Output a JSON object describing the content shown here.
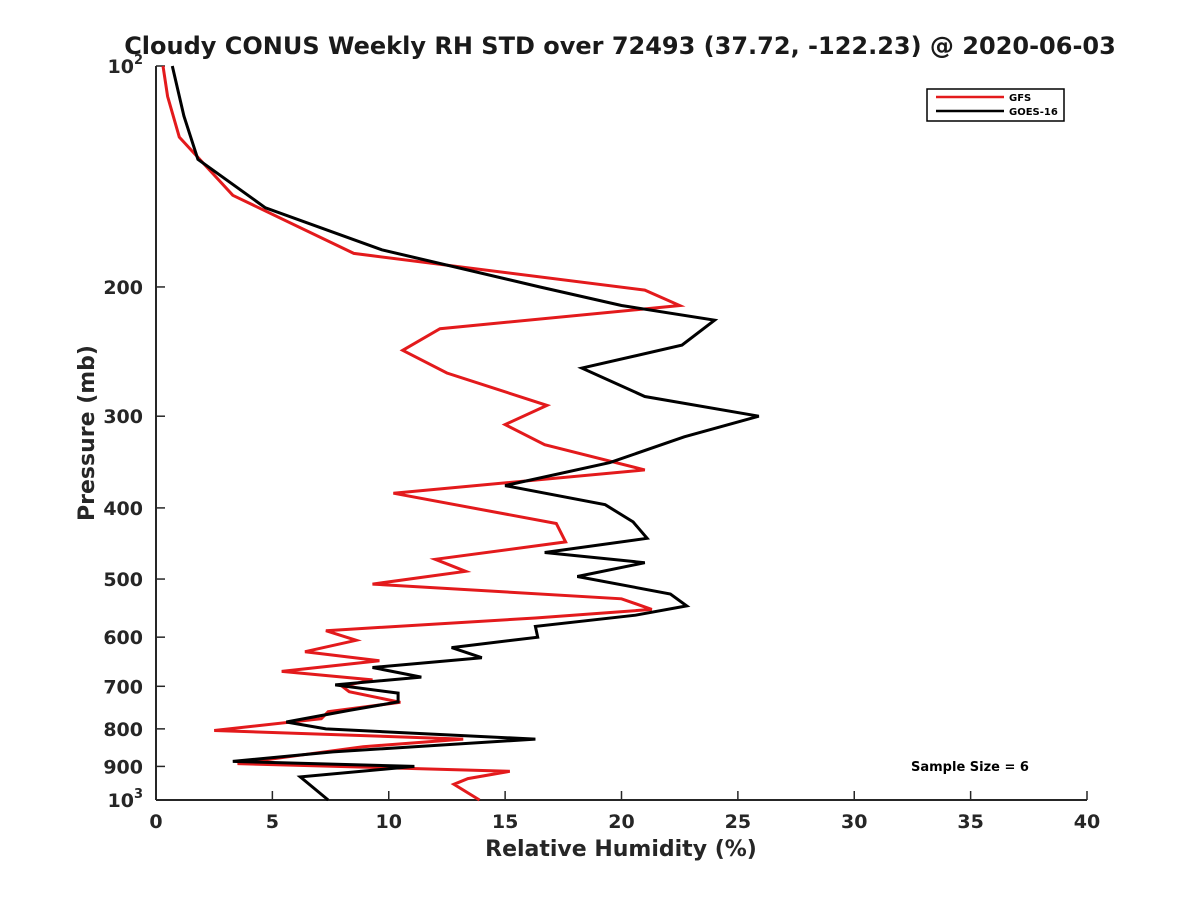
{
  "chart_data": {
    "type": "line",
    "title": "Cloudy CONUS Weekly RH STD over 72493 (37.72, -122.23) @ 2020-06-03",
    "xlabel": "Relative Humidity (%)",
    "ylabel": "Pressure (mb)",
    "xlim": [
      0,
      40
    ],
    "ylim": [
      1000,
      100
    ],
    "y_scale": "log",
    "y_reversed": true,
    "x_ticks": [
      "0",
      "5",
      "10",
      "15",
      "20",
      "25",
      "30",
      "35",
      "40"
    ],
    "y_ticks": [
      {
        "value": 100,
        "base": "10",
        "exp": "2"
      },
      {
        "value": 200,
        "label": "200"
      },
      {
        "value": 300,
        "label": "300"
      },
      {
        "value": 400,
        "label": "400"
      },
      {
        "value": 500,
        "label": "500"
      },
      {
        "value": 600,
        "label": "600"
      },
      {
        "value": 700,
        "label": "700"
      },
      {
        "value": 800,
        "label": "800"
      },
      {
        "value": 900,
        "label": "900"
      },
      {
        "value": 1000,
        "base": "10",
        "exp": "3"
      }
    ],
    "legend_position": "top-right",
    "grid": false,
    "annotation": "Sample Size = 6",
    "series": [
      {
        "name": "GFS",
        "color": "#e31a1c",
        "points": [
          [
            0.3,
            100
          ],
          [
            0.5,
            110
          ],
          [
            1.0,
            125
          ],
          [
            3.3,
            150
          ],
          [
            8.5,
            180
          ],
          [
            21.0,
            202
          ],
          [
            22.5,
            212
          ],
          [
            12.2,
            228
          ],
          [
            10.6,
            244
          ],
          [
            12.5,
            262
          ],
          [
            16.8,
            290
          ],
          [
            15.0,
            308
          ],
          [
            16.7,
            328
          ],
          [
            21.0,
            355
          ],
          [
            10.2,
            382
          ],
          [
            17.2,
            420
          ],
          [
            17.6,
            445
          ],
          [
            12.0,
            470
          ],
          [
            13.3,
            488
          ],
          [
            9.3,
            508
          ],
          [
            20.0,
            532
          ],
          [
            21.3,
            550
          ],
          [
            16.3,
            565
          ],
          [
            7.3,
            588
          ],
          [
            8.6,
            606
          ],
          [
            6.4,
            628
          ],
          [
            9.6,
            646
          ],
          [
            5.4,
            668
          ],
          [
            9.3,
            686
          ],
          [
            8.0,
            700
          ],
          [
            8.3,
            712
          ],
          [
            10.5,
            736
          ],
          [
            7.4,
            758
          ],
          [
            7.1,
            775
          ],
          [
            2.5,
            804
          ],
          [
            13.2,
            826
          ],
          [
            8.9,
            846
          ],
          [
            3.5,
            892
          ],
          [
            15.2,
            914
          ],
          [
            13.4,
            935
          ],
          [
            12.8,
            952
          ],
          [
            13.9,
            1000
          ]
        ]
      },
      {
        "name": "GOES-16",
        "color": "#000000",
        "points": [
          [
            0.7,
            100
          ],
          [
            1.2,
            117
          ],
          [
            1.8,
            134
          ],
          [
            4.7,
            156
          ],
          [
            9.7,
            178
          ],
          [
            16.5,
            200
          ],
          [
            20.0,
            212
          ],
          [
            24.0,
            222
          ],
          [
            22.6,
            240
          ],
          [
            18.3,
            258
          ],
          [
            21.0,
            282
          ],
          [
            25.9,
            300
          ],
          [
            22.7,
            320
          ],
          [
            19.5,
            347
          ],
          [
            15.0,
            373
          ],
          [
            19.3,
            396
          ],
          [
            20.5,
            418
          ],
          [
            21.1,
            440
          ],
          [
            16.7,
            460
          ],
          [
            21.0,
            475
          ],
          [
            18.1,
            496
          ],
          [
            22.1,
            524
          ],
          [
            22.8,
            544
          ],
          [
            20.6,
            560
          ],
          [
            16.3,
            580
          ],
          [
            16.4,
            600
          ],
          [
            12.7,
            620
          ],
          [
            14.0,
            640
          ],
          [
            9.3,
            660
          ],
          [
            11.4,
            680
          ],
          [
            7.7,
            697
          ],
          [
            10.4,
            715
          ],
          [
            10.4,
            735
          ],
          [
            8.3,
            755
          ],
          [
            5.6,
            783
          ],
          [
            7.3,
            800
          ],
          [
            16.3,
            826
          ],
          [
            7.6,
            860
          ],
          [
            3.3,
            886
          ],
          [
            11.1,
            900
          ],
          [
            6.2,
            930
          ],
          [
            7.4,
            1000
          ]
        ]
      }
    ]
  }
}
